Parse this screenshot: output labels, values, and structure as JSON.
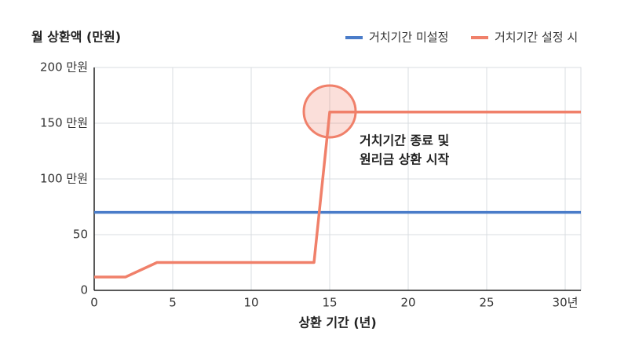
{
  "chart_data": {
    "type": "line",
    "y_axis_label": "월 상환액 (만원)",
    "x_axis_label": "상환 기간 (년)",
    "annotation": [
      "거치기간 종료 및",
      "원리금 상환 시작"
    ],
    "xlim": [
      0,
      31
    ],
    "ylim": [
      0,
      200
    ],
    "xticks": [
      0,
      5,
      10,
      15,
      20,
      25,
      {
        "value": 30,
        "label": "30년"
      }
    ],
    "yticks": [
      0,
      50,
      {
        "value": 100,
        "label": "100 만원"
      },
      {
        "value": 150,
        "label": "150 만원"
      },
      {
        "value": 200,
        "label": "200 만원"
      }
    ],
    "grid": true,
    "series": [
      {
        "name": "거치기간 미설정",
        "color": "#4a7cc9",
        "x": [
          0,
          31
        ],
        "values": [
          70,
          70
        ]
      },
      {
        "name": "거치기간 설정 시",
        "color": "#f0806a",
        "x": [
          0,
          2,
          4,
          14,
          15,
          31
        ],
        "values": [
          12,
          12,
          25,
          25,
          160,
          160
        ]
      }
    ]
  }
}
